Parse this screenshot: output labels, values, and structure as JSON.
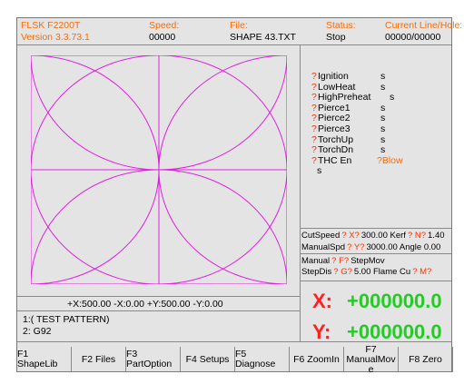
{
  "header": [
    {
      "label": "FLSK F2200T",
      "value": "Version 3.3.73.1"
    },
    {
      "label": "Speed:",
      "value": "00000"
    },
    {
      "label": "File:",
      "value": "SHAPE  43.TXT"
    },
    {
      "label": "Status:",
      "value": "Stop"
    },
    {
      "label": "Current Line/Hole:",
      "value": "00000/00000"
    }
  ],
  "limits": "+X:500.00   -X:0.00   +Y:500.00   -Y:0.00",
  "program": [
    "1:(  TEST PATTERN)",
    "2:   G92"
  ],
  "io": [
    {
      "mark": "?",
      "name": "Ignition",
      "state": "s"
    },
    {
      "mark": "?",
      "name": "LowHeat",
      "state": "s"
    },
    {
      "mark": "?",
      "name": "HighPreheat",
      "state": "s"
    },
    {
      "mark": "?",
      "name": "Pierce1",
      "state": "s"
    },
    {
      "mark": "?",
      "name": "Pierce2",
      "state": "s"
    },
    {
      "mark": "?",
      "name": "Pierce3",
      "state": "s"
    },
    {
      "mark": "?",
      "name": "TorchUp",
      "state": "s"
    },
    {
      "mark": "?",
      "name": "TorchDn",
      "state": "s"
    },
    {
      "mark": "?",
      "name": "THC En",
      "state": "?Blow"
    }
  ],
  "io_tail": "s",
  "params": [
    [
      {
        "text": "CutSpeed",
        "color": "#000000"
      },
      {
        "text": "? X?",
        "color": "#ff3300"
      },
      {
        "text": "300.00 Kerf",
        "color": "#000000"
      },
      {
        "text": "? N?",
        "color": "#ff3300"
      },
      {
        "text": "1.40",
        "color": "#000000"
      }
    ],
    [
      {
        "text": "ManualSpd",
        "color": "#000000"
      },
      {
        "text": "? Y?",
        "color": "#ff3300"
      },
      {
        "text": "3000.00 Angle   0.00",
        "color": "#000000"
      }
    ],
    [
      {
        "text": "Manual",
        "color": "#000000"
      },
      {
        "text": "? F?",
        "color": "#ff3300"
      },
      {
        "text": "StepMov",
        "color": "#000000"
      }
    ],
    [
      {
        "text": "StepDis",
        "color": "#000000"
      },
      {
        "text": "? G?",
        "color": "#ff3300"
      },
      {
        "text": "5.00  Flame Cu",
        "color": "#000000"
      },
      {
        "text": "? M?",
        "color": "#ff3300"
      }
    ]
  ],
  "positions": [
    {
      "axis": "X:",
      "value": "+000000.0"
    },
    {
      "axis": "Y:",
      "value": "+000000.0"
    }
  ],
  "buttons": [
    [
      "F1 ShapeLib"
    ],
    [
      "F2 Files"
    ],
    [
      "F3 PartOption"
    ],
    [
      "F4 Setups"
    ],
    [
      "F5 Diagnose"
    ],
    [
      "F6 ZoomIn"
    ],
    [
      "F7",
      "ManualMov",
      "e"
    ],
    [
      "F8 Zero"
    ]
  ]
}
